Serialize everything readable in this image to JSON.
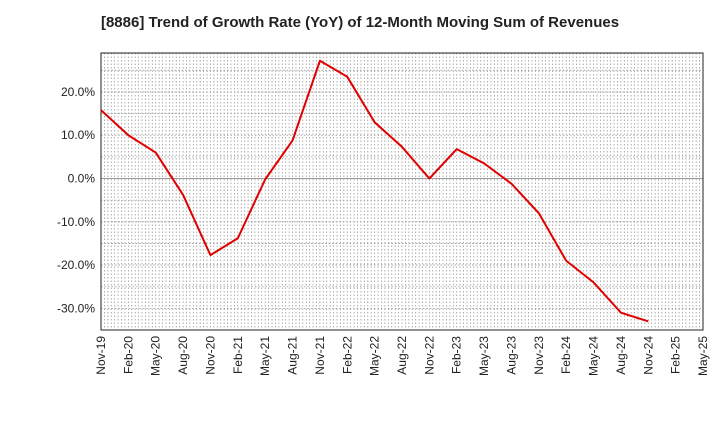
{
  "chart_data": {
    "type": "line",
    "title": "[8886]  Trend of Growth Rate (YoY) of 12-Month Moving Sum of Revenues",
    "xlabel": "",
    "ylabel": "",
    "x": [
      "Nov-19",
      "Feb-20",
      "May-20",
      "Aug-20",
      "Nov-20",
      "Feb-21",
      "May-21",
      "Aug-21",
      "Nov-21",
      "Feb-22",
      "May-22",
      "Aug-22",
      "Nov-22",
      "Feb-23",
      "May-23",
      "Aug-23",
      "Nov-23",
      "Feb-24",
      "May-24",
      "Aug-24",
      "Nov-24",
      "Feb-25",
      "May-25"
    ],
    "series": [
      {
        "name": "",
        "color": "#e00000",
        "values": [
          15.8,
          10.0,
          6.0,
          -3.8,
          -17.7,
          -13.8,
          -0.2,
          8.8,
          27.2,
          23.5,
          13.0,
          7.3,
          0.0,
          6.8,
          3.5,
          -1.2,
          -8.0,
          -19.0,
          -24.0,
          -31.0,
          -33.0,
          null,
          null
        ]
      }
    ],
    "y_ticks": [
      20,
      10,
      0,
      -10,
      -20,
      -30
    ],
    "y_tick_labels": [
      "20.0%",
      "10.0%",
      "0.0%",
      "-10.0%",
      "-20.0%",
      "-30.0%"
    ],
    "ylim": [
      -35,
      29
    ],
    "grid": true,
    "zero_line": true
  }
}
